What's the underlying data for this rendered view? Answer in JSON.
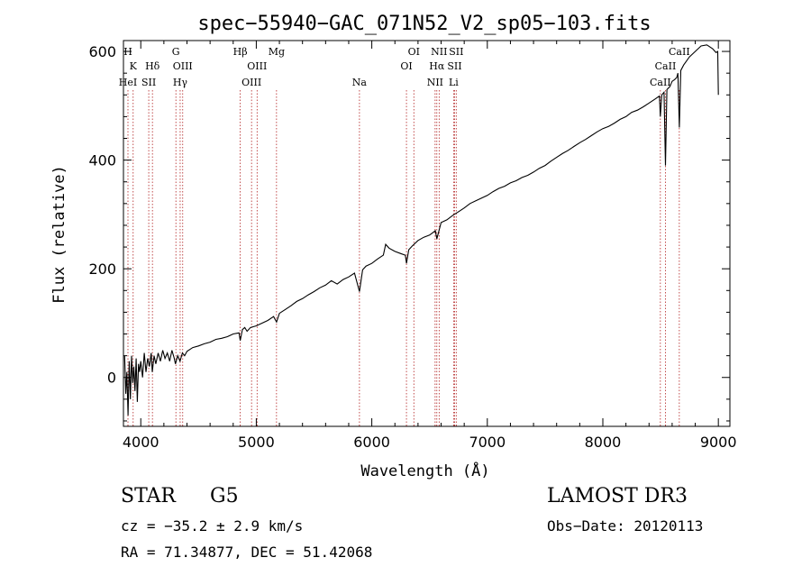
{
  "chart_data": {
    "type": "line",
    "title": "spec−55940−GAC_071N52_V2_sp05−103.fits",
    "xlabel": "Wavelength (Å)",
    "ylabel": "Flux (relative)",
    "xlim": [
      3850,
      9100
    ],
    "ylim": [
      -90,
      620
    ],
    "x_ticks": [
      {
        "v": 4000,
        "label": "4000"
      },
      {
        "v": 5000,
        "label": "5000"
      },
      {
        "v": 6000,
        "label": "6000"
      },
      {
        "v": 7000,
        "label": "7000"
      },
      {
        "v": 8000,
        "label": "8000"
      },
      {
        "v": 9000,
        "label": "9000"
      }
    ],
    "y_ticks": [
      {
        "v": 0,
        "label": "0"
      },
      {
        "v": 200,
        "label": "200"
      },
      {
        "v": 400,
        "label": "400"
      },
      {
        "v": 600,
        "label": "600"
      }
    ],
    "line_color": "#000000",
    "marker_color": "#b22222",
    "spectrum": [
      [
        3860,
        40
      ],
      [
        3870,
        -30
      ],
      [
        3880,
        10
      ],
      [
        3890,
        -70
      ],
      [
        3900,
        30
      ],
      [
        3910,
        -40
      ],
      [
        3920,
        40
      ],
      [
        3930,
        -10
      ],
      [
        3940,
        20
      ],
      [
        3950,
        -25
      ],
      [
        3960,
        35
      ],
      [
        3970,
        -45
      ],
      [
        3980,
        25
      ],
      [
        3990,
        10
      ],
      [
        4000,
        30
      ],
      [
        4015,
        0
      ],
      [
        4030,
        45
      ],
      [
        4045,
        10
      ],
      [
        4060,
        35
      ],
      [
        4075,
        20
      ],
      [
        4090,
        45
      ],
      [
        4100,
        10
      ],
      [
        4115,
        40
      ],
      [
        4130,
        25
      ],
      [
        4150,
        45
      ],
      [
        4170,
        30
      ],
      [
        4190,
        50
      ],
      [
        4210,
        35
      ],
      [
        4230,
        45
      ],
      [
        4250,
        30
      ],
      [
        4270,
        50
      ],
      [
        4290,
        35
      ],
      [
        4300,
        25
      ],
      [
        4320,
        40
      ],
      [
        4340,
        30
      ],
      [
        4360,
        45
      ],
      [
        4380,
        40
      ],
      [
        4400,
        48
      ],
      [
        4450,
        55
      ],
      [
        4500,
        58
      ],
      [
        4550,
        62
      ],
      [
        4600,
        65
      ],
      [
        4650,
        70
      ],
      [
        4700,
        72
      ],
      [
        4750,
        75
      ],
      [
        4800,
        80
      ],
      [
        4850,
        82
      ],
      [
        4861,
        68
      ],
      [
        4880,
        88
      ],
      [
        4900,
        92
      ],
      [
        4920,
        85
      ],
      [
        4950,
        92
      ],
      [
        5000,
        95
      ],
      [
        5050,
        100
      ],
      [
        5100,
        105
      ],
      [
        5150,
        112
      ],
      [
        5175,
        102
      ],
      [
        5200,
        118
      ],
      [
        5250,
        125
      ],
      [
        5300,
        132
      ],
      [
        5350,
        140
      ],
      [
        5400,
        145
      ],
      [
        5450,
        152
      ],
      [
        5500,
        158
      ],
      [
        5550,
        165
      ],
      [
        5600,
        170
      ],
      [
        5650,
        178
      ],
      [
        5700,
        172
      ],
      [
        5750,
        180
      ],
      [
        5800,
        185
      ],
      [
        5850,
        192
      ],
      [
        5893,
        158
      ],
      [
        5920,
        198
      ],
      [
        5950,
        205
      ],
      [
        6000,
        210
      ],
      [
        6050,
        218
      ],
      [
        6100,
        225
      ],
      [
        6120,
        245
      ],
      [
        6150,
        238
      ],
      [
        6200,
        232
      ],
      [
        6250,
        228
      ],
      [
        6290,
        225
      ],
      [
        6300,
        210
      ],
      [
        6320,
        235
      ],
      [
        6350,
        242
      ],
      [
        6400,
        252
      ],
      [
        6450,
        258
      ],
      [
        6500,
        262
      ],
      [
        6550,
        270
      ],
      [
        6563,
        255
      ],
      [
        6600,
        285
      ],
      [
        6650,
        290
      ],
      [
        6700,
        298
      ],
      [
        6750,
        305
      ],
      [
        6800,
        312
      ],
      [
        6850,
        320
      ],
      [
        6900,
        325
      ],
      [
        6950,
        330
      ],
      [
        7000,
        335
      ],
      [
        7050,
        342
      ],
      [
        7100,
        348
      ],
      [
        7150,
        352
      ],
      [
        7200,
        358
      ],
      [
        7250,
        362
      ],
      [
        7300,
        368
      ],
      [
        7350,
        372
      ],
      [
        7400,
        378
      ],
      [
        7450,
        385
      ],
      [
        7500,
        390
      ],
      [
        7550,
        398
      ],
      [
        7600,
        405
      ],
      [
        7650,
        412
      ],
      [
        7700,
        418
      ],
      [
        7750,
        425
      ],
      [
        7800,
        432
      ],
      [
        7850,
        438
      ],
      [
        7900,
        445
      ],
      [
        7950,
        452
      ],
      [
        8000,
        458
      ],
      [
        8050,
        462
      ],
      [
        8100,
        468
      ],
      [
        8150,
        475
      ],
      [
        8200,
        480
      ],
      [
        8250,
        488
      ],
      [
        8300,
        492
      ],
      [
        8350,
        498
      ],
      [
        8400,
        505
      ],
      [
        8450,
        512
      ],
      [
        8490,
        518
      ],
      [
        8498,
        480
      ],
      [
        8510,
        520
      ],
      [
        8530,
        525
      ],
      [
        8542,
        390
      ],
      [
        8555,
        530
      ],
      [
        8580,
        535
      ],
      [
        8600,
        545
      ],
      [
        8620,
        548
      ],
      [
        8640,
        552
      ],
      [
        8650,
        560
      ],
      [
        8662,
        460
      ],
      [
        8675,
        565
      ],
      [
        8700,
        575
      ],
      [
        8750,
        590
      ],
      [
        8800,
        600
      ],
      [
        8850,
        610
      ],
      [
        8900,
        612
      ],
      [
        8950,
        605
      ],
      [
        8980,
        598
      ],
      [
        8995,
        600
      ],
      [
        9000,
        520
      ]
    ],
    "lines": [
      {
        "label": "H",
        "x": 3889,
        "row": 0
      },
      {
        "label": "K",
        "x": 3934,
        "row": 1
      },
      {
        "label": "HeI",
        "x": 3889,
        "row": 2
      },
      {
        "label": "SII",
        "x": 4069,
        "row": 2
      },
      {
        "label": "Hδ",
        "x": 4101,
        "row": 1
      },
      {
        "label": "G",
        "x": 4304,
        "row": 0
      },
      {
        "label": "OIII",
        "x": 4363,
        "row": 1
      },
      {
        "label": "Hγ",
        "x": 4341,
        "row": 2
      },
      {
        "label": "Hβ",
        "x": 4861,
        "row": 0
      },
      {
        "label": "OIII",
        "x": 5007,
        "row": 1
      },
      {
        "label": "OIII",
        "x": 4959,
        "row": 2
      },
      {
        "label": "Mg",
        "x": 5175,
        "row": 0
      },
      {
        "label": "Na",
        "x": 5893,
        "row": 2
      },
      {
        "label": "OI",
        "x": 6364,
        "row": 0
      },
      {
        "label": "OI",
        "x": 6300,
        "row": 1
      },
      {
        "label": "NII",
        "x": 6583,
        "row": 0
      },
      {
        "label": "SII",
        "x": 6731,
        "row": 0
      },
      {
        "label": "Hα",
        "x": 6563,
        "row": 1
      },
      {
        "label": "SII",
        "x": 6717,
        "row": 1
      },
      {
        "label": "NII",
        "x": 6548,
        "row": 2
      },
      {
        "label": "Li",
        "x": 6708,
        "row": 2
      },
      {
        "label": "CaII",
        "x": 8662,
        "row": 0
      },
      {
        "label": "CaII",
        "x": 8542,
        "row": 1
      },
      {
        "label": "CaII",
        "x": 8498,
        "row": 2
      }
    ]
  },
  "footer": {
    "object_class": "STAR",
    "subclass": "G5",
    "cz": "cz = −35.2 ± 2.9 km/s",
    "radec": "RA =  71.34877, DEC =  51.42068",
    "survey": "LAMOST DR3",
    "obs_date": "Obs−Date: 20120113"
  }
}
